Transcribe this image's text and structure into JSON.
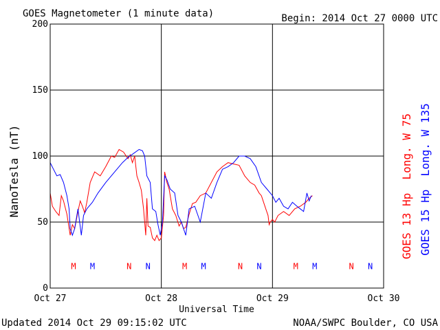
{
  "chart_data": {
    "type": "line",
    "title": "GOES Magnetometer (1 minute data)",
    "begin_label": "Begin:  2014 Oct 27 0000 UTC",
    "ylabel": "NanoTesla (nT)",
    "xlabel": "Universal Time",
    "ylim": [
      0,
      200
    ],
    "yticks": [
      0,
      50,
      100,
      150,
      200
    ],
    "xlim": [
      0,
      3
    ],
    "xticks": [
      {
        "value": 0,
        "label": "Oct 27"
      },
      {
        "value": 1,
        "label": "Oct 28"
      },
      {
        "value": 2,
        "label": "Oct 29"
      },
      {
        "value": 3,
        "label": "Oct 30"
      }
    ],
    "grid": true,
    "series": [
      {
        "name": "GOES 13 Hp  Long. W 75",
        "color": "#ff0000",
        "x": [
          0.0,
          0.02,
          0.05,
          0.08,
          0.1,
          0.12,
          0.15,
          0.18,
          0.2,
          0.22,
          0.25,
          0.27,
          0.29,
          0.31,
          0.33,
          0.36,
          0.4,
          0.45,
          0.5,
          0.55,
          0.58,
          0.62,
          0.66,
          0.7,
          0.72,
          0.74,
          0.76,
          0.78,
          0.8,
          0.82,
          0.84,
          0.86,
          0.87,
          0.88,
          0.9,
          0.92,
          0.94,
          0.96,
          0.98,
          1.0,
          1.02,
          1.03,
          1.05,
          1.07,
          1.1,
          1.13,
          1.16,
          1.18,
          1.2,
          1.22,
          1.25,
          1.28,
          1.31,
          1.35,
          1.4,
          1.45,
          1.5,
          1.55,
          1.6,
          1.65,
          1.7,
          1.75,
          1.8,
          1.84,
          1.88,
          1.9,
          1.92,
          1.94,
          1.96,
          1.97,
          1.98,
          2.0,
          2.02,
          2.05,
          2.1,
          2.15,
          2.2,
          2.25,
          2.3,
          2.33,
          2.36
        ],
        "values": [
          72,
          62,
          58,
          55,
          70,
          66,
          56,
          40,
          48,
          45,
          58,
          66,
          62,
          57,
          65,
          80,
          88,
          85,
          92,
          100,
          99,
          105,
          103,
          98,
          101,
          95,
          100,
          85,
          80,
          74,
          60,
          40,
          68,
          47,
          46,
          38,
          36,
          40,
          36,
          38,
          55,
          88,
          80,
          75,
          60,
          55,
          47,
          50,
          45,
          46,
          56,
          64,
          65,
          70,
          72,
          80,
          88,
          92,
          95,
          94,
          93,
          85,
          80,
          78,
          72,
          70,
          65,
          60,
          55,
          48,
          50,
          52,
          50,
          55,
          58,
          55,
          60,
          62,
          65,
          68,
          70
        ]
      },
      {
        "name": "GOES 15 Hp  Long. W 135",
        "color": "#0000ff",
        "x": [
          0.0,
          0.03,
          0.06,
          0.09,
          0.12,
          0.15,
          0.17,
          0.18,
          0.2,
          0.22,
          0.25,
          0.28,
          0.3,
          0.33,
          0.38,
          0.43,
          0.5,
          0.55,
          0.6,
          0.65,
          0.7,
          0.75,
          0.8,
          0.83,
          0.85,
          0.87,
          0.9,
          0.92,
          0.95,
          0.97,
          0.99,
          1.01,
          1.03,
          1.05,
          1.08,
          1.12,
          1.15,
          1.18,
          1.2,
          1.22,
          1.25,
          1.3,
          1.35,
          1.4,
          1.45,
          1.5,
          1.55,
          1.6,
          1.65,
          1.7,
          1.75,
          1.8,
          1.85,
          1.9,
          1.95,
          2.0,
          2.03,
          2.06,
          2.1,
          2.14,
          2.18,
          2.22,
          2.25,
          2.28,
          2.31,
          2.33,
          2.35
        ],
        "values": [
          95,
          90,
          85,
          86,
          80,
          70,
          60,
          45,
          40,
          45,
          60,
          40,
          55,
          60,
          65,
          72,
          80,
          85,
          90,
          95,
          99,
          102,
          105,
          104,
          100,
          85,
          80,
          60,
          58,
          48,
          40,
          50,
          85,
          82,
          75,
          72,
          55,
          50,
          45,
          40,
          60,
          62,
          50,
          72,
          68,
          80,
          90,
          92,
          95,
          100,
          100,
          98,
          92,
          80,
          75,
          70,
          65,
          68,
          62,
          60,
          65,
          62,
          60,
          58,
          72,
          66,
          70
        ]
      }
    ],
    "markers": {
      "goes13": [
        {
          "x": 0.21,
          "label": "M"
        },
        {
          "x": 0.71,
          "label": "N"
        },
        {
          "x": 1.21,
          "label": "M"
        },
        {
          "x": 1.71,
          "label": "N"
        },
        {
          "x": 2.21,
          "label": "M"
        },
        {
          "x": 2.71,
          "label": "N"
        }
      ],
      "goes15": [
        {
          "x": 0.38,
          "label": "M"
        },
        {
          "x": 0.88,
          "label": "N"
        },
        {
          "x": 1.38,
          "label": "M"
        },
        {
          "x": 1.88,
          "label": "N"
        },
        {
          "x": 2.38,
          "label": "M"
        },
        {
          "x": 2.88,
          "label": "N"
        }
      ]
    },
    "marker_value": 17
  },
  "footer": {
    "updated": "Updated 2014 Oct 29 09:15:02 UTC",
    "source": "NOAA/SWPC Boulder, CO USA"
  }
}
